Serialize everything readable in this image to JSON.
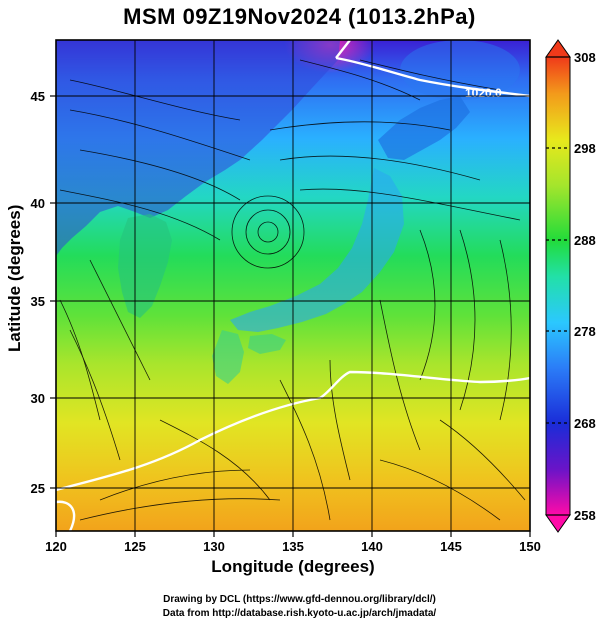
{
  "title": "MSM 09Z19Nov2024 (1013.2hPa)",
  "x_axis": {
    "label": "Longitude (degrees)",
    "min": 120,
    "max": 150,
    "ticks": [
      120,
      125,
      130,
      135,
      140,
      145,
      150
    ]
  },
  "y_axis": {
    "label": "Latitude  (degrees)",
    "min": 22.4,
    "max": 47.6,
    "ticks": [
      25,
      30,
      35,
      40,
      45
    ]
  },
  "colorbar": {
    "min": 258,
    "max": 308,
    "ticks": [
      258,
      268,
      278,
      288,
      298,
      308
    ]
  },
  "contour_label": "1020.0",
  "colors": {
    "cold": "#3d1fd1",
    "cool": "#39c7ff",
    "mild": "#22dc58",
    "warm": "#e2e81b",
    "hot": "#f2a21b",
    "grid": "#000000",
    "contour": "#ffffff"
  },
  "credits": {
    "line1": "Drawing by DCL (https://www.gfd-dennou.org/library/dcl/)",
    "line2": "Data from http://database.rish.kyoto-u.ac.jp/arch/jmadata/"
  }
}
